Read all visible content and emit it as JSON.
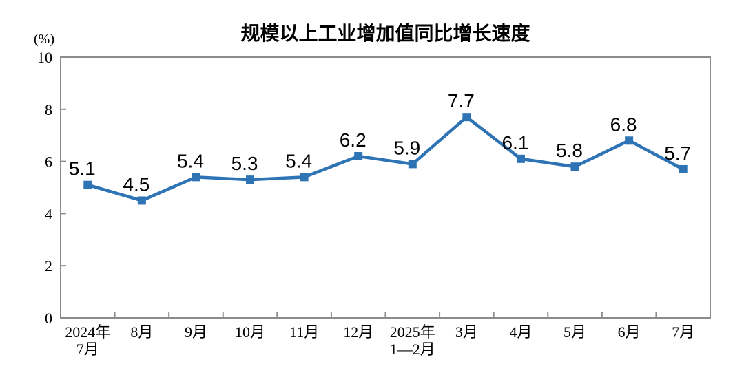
{
  "chart_data": {
    "type": "line",
    "title": "规模以上工业增加值同比增长速度",
    "ylabel": "(%)",
    "categories": [
      [
        "2024年",
        "7月"
      ],
      [
        "8月"
      ],
      [
        "9月"
      ],
      [
        "10月"
      ],
      [
        "11月"
      ],
      [
        "12月"
      ],
      [
        "2025年",
        "1—2月"
      ],
      [
        "3月"
      ],
      [
        "4月"
      ],
      [
        "5月"
      ],
      [
        "6月"
      ],
      [
        "7月"
      ]
    ],
    "series": [
      {
        "name": "规模以上工业增加值同比增长速度",
        "values": [
          5.1,
          4.5,
          5.4,
          5.3,
          5.4,
          6.2,
          5.9,
          7.7,
          6.1,
          5.8,
          6.8,
          5.7
        ]
      }
    ],
    "ylim": [
      0,
      10
    ],
    "yticks": [
      0,
      2,
      4,
      6,
      8,
      10
    ],
    "grid": false,
    "legend": "none",
    "marker": "square",
    "show_data_labels": true,
    "line_color": "#2E74B5",
    "axis_color": "#8C8C8C",
    "text_color": "#000000"
  }
}
